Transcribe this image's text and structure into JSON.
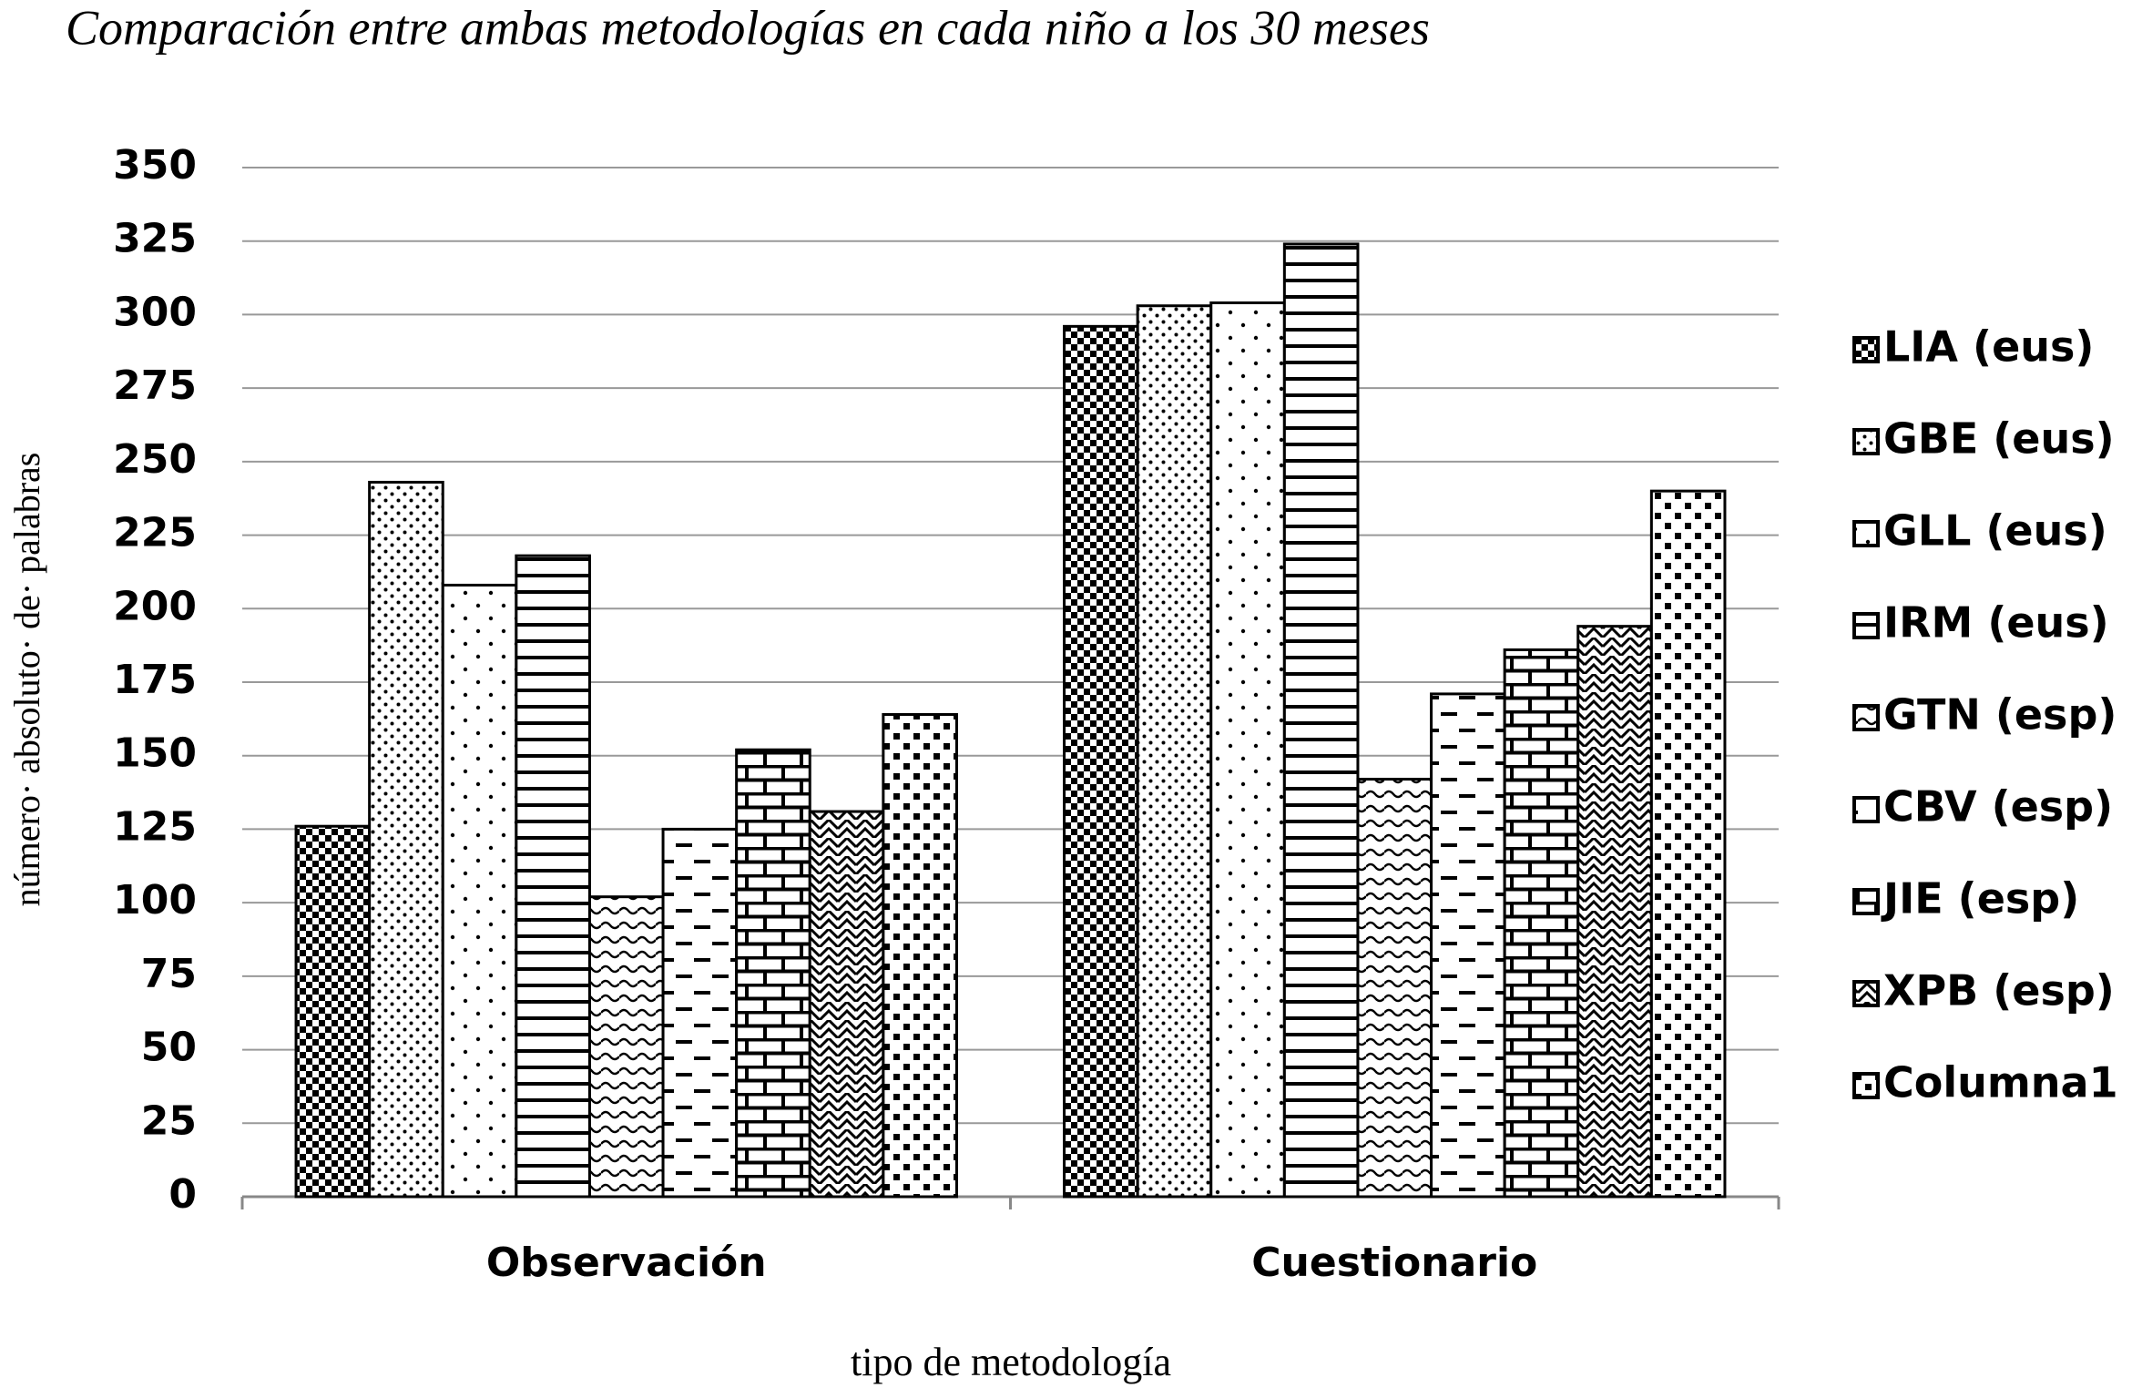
{
  "chart_data": {
    "type": "bar",
    "title": "Comparación entre ambas metodologías en cada niño a los 30 meses",
    "y_label": "número· absoluto· de· palabras",
    "x_label": "tipo de metodología",
    "categories": [
      "Observación",
      "Cuestionario"
    ],
    "series": [
      {
        "name": "LIA (eus)",
        "color": "#000000",
        "pattern": "checker",
        "values": [
          126,
          296
        ]
      },
      {
        "name": "GBE (eus)",
        "color": "#000000",
        "pattern": "dots",
        "values": [
          243,
          303
        ]
      },
      {
        "name": "GLL (eus)",
        "color": "#000000",
        "pattern": "sparse-dots",
        "values": [
          208,
          304
        ]
      },
      {
        "name": "IRM (eus)",
        "color": "#000000",
        "pattern": "hlines",
        "values": [
          218,
          324
        ]
      },
      {
        "name": "GTN (esp)",
        "color": "#000000",
        "pattern": "wave",
        "values": [
          102,
          142
        ]
      },
      {
        "name": "CBV (esp)",
        "color": "#000000",
        "pattern": "dashes",
        "values": [
          125,
          171
        ]
      },
      {
        "name": "JIE (esp)",
        "color": "#000000",
        "pattern": "bricks",
        "values": [
          152,
          186
        ]
      },
      {
        "name": "XPB (esp)",
        "color": "#000000",
        "pattern": "zigzag",
        "values": [
          131,
          194
        ]
      },
      {
        "name": "Columna1",
        "color": "#000000",
        "pattern": "bigdots",
        "values": [
          164,
          240
        ]
      }
    ],
    "ylim": [
      0,
      350
    ],
    "yticks": [
      0,
      25,
      50,
      75,
      100,
      125,
      150,
      175,
      200,
      225,
      250,
      275,
      300,
      325,
      350
    ],
    "grid": true,
    "legend": "right"
  }
}
